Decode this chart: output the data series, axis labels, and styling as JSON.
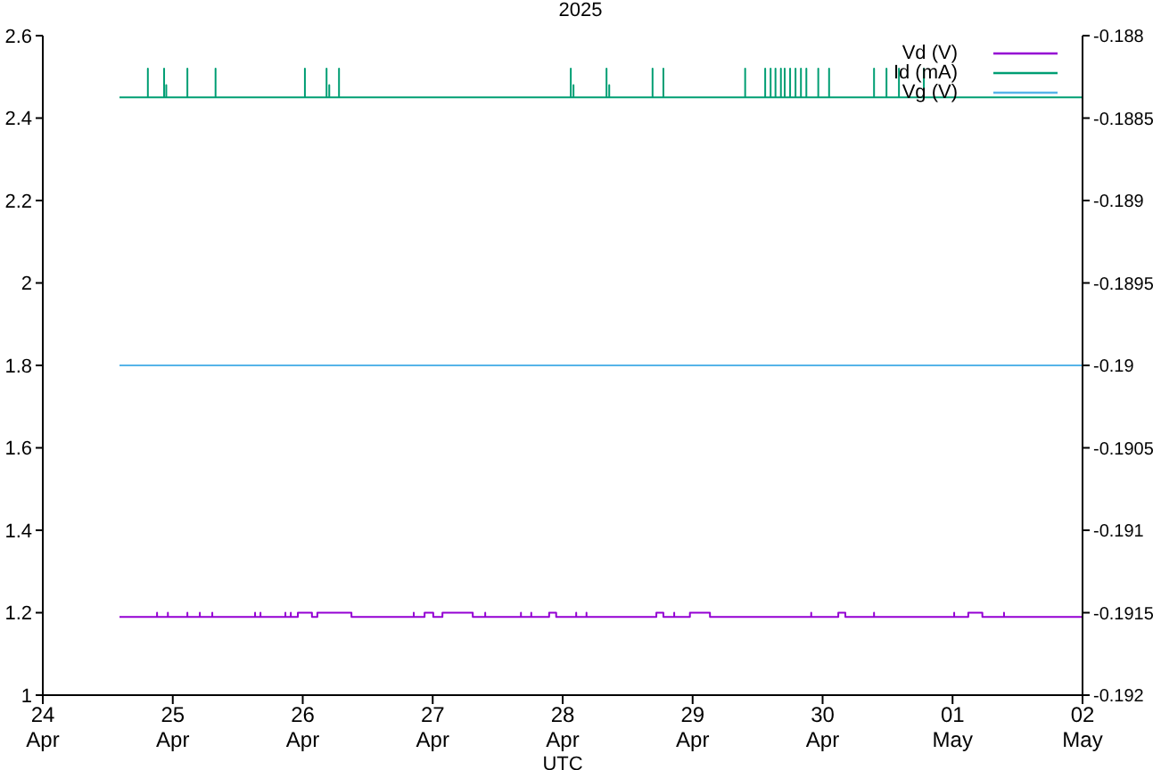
{
  "chart_data": {
    "type": "line",
    "title": "2025",
    "xlabel": "UTC",
    "xlim": [
      "2025-04-24",
      "2025-05-02"
    ],
    "xticks": [
      {
        "value": "2025-04-24",
        "label": "24 Apr"
      },
      {
        "value": "2025-04-25",
        "label": "25 Apr"
      },
      {
        "value": "2025-04-26",
        "label": "26 Apr"
      },
      {
        "value": "2025-04-27",
        "label": "27 Apr"
      },
      {
        "value": "2025-04-28",
        "label": "28 Apr"
      },
      {
        "value": "2025-04-29",
        "label": "29 Apr"
      },
      {
        "value": "2025-04-30",
        "label": "30 Apr"
      },
      {
        "value": "2025-05-01",
        "label": "01 May"
      },
      {
        "value": "2025-05-02",
        "label": "02 May"
      }
    ],
    "ylim": [
      1,
      2.6
    ],
    "yticks": [
      1,
      1.2,
      1.4,
      1.6,
      1.8,
      2,
      2.2,
      2.4,
      2.6
    ],
    "y2lim": [
      -0.192,
      -0.188
    ],
    "y2ticks": [
      -0.192,
      -0.1915,
      -0.191,
      -0.1905,
      -0.19,
      -0.1895,
      -0.189,
      -0.1885,
      -0.188
    ],
    "legend": "top right",
    "marker": "none",
    "line_style": "solid",
    "series": [
      {
        "name": "Vd (V)",
        "color": "#9400d3",
        "x": [
          "2025-04-24T14:10",
          "2025-04-24T21:06",
          "2025-04-24T21:06",
          "2025-04-24T21:06",
          "2025-04-24T23:06",
          "2025-04-24T23:06",
          "2025-04-24T23:06",
          "2025-04-25T02:42",
          "2025-04-25T02:42",
          "2025-04-25T02:42",
          "2025-04-25T05:00",
          "2025-04-25T05:00",
          "2025-04-25T05:00",
          "2025-04-25T07:18",
          "2025-04-25T07:18",
          "2025-04-25T07:18",
          "2025-04-25T15:12",
          "2025-04-25T15:12",
          "2025-04-25T15:12",
          "2025-04-25T16:12",
          "2025-04-25T16:12",
          "2025-04-25T16:12",
          "2025-04-25T20:48",
          "2025-04-25T20:48",
          "2025-04-25T20:48",
          "2025-04-25T21:48",
          "2025-04-25T21:48",
          "2025-04-25T21:48",
          "2025-04-25T23:06",
          "2025-04-25T23:06",
          "2025-04-26T01:42",
          "2025-04-26T01:42",
          "2025-04-26T02:42",
          "2025-04-26T02:42",
          "2025-04-26T09:00",
          "2025-04-26T09:00",
          "2025-04-26T20:30",
          "2025-04-26T20:30",
          "2025-04-26T20:30",
          "2025-04-26T22:30",
          "2025-04-26T22:30",
          "2025-04-27T00:06",
          "2025-04-27T00:06",
          "2025-04-27T01:48",
          "2025-04-27T01:48",
          "2025-04-27T07:24",
          "2025-04-27T07:24",
          "2025-04-27T09:42",
          "2025-04-27T09:42",
          "2025-04-27T09:42",
          "2025-04-27T16:18",
          "2025-04-27T16:18",
          "2025-04-27T16:18",
          "2025-04-27T18:12",
          "2025-04-27T18:12",
          "2025-04-27T18:12",
          "2025-04-27T21:30",
          "2025-04-27T21:30",
          "2025-04-27T22:48",
          "2025-04-27T22:48",
          "2025-04-28T02:30",
          "2025-04-28T02:30",
          "2025-04-28T02:30",
          "2025-04-28T04:24",
          "2025-04-28T04:24",
          "2025-04-28T04:24",
          "2025-04-28T17:18",
          "2025-04-28T17:18",
          "2025-04-28T18:36",
          "2025-04-28T18:36",
          "2025-04-28T20:36",
          "2025-04-28T20:36",
          "2025-04-28T20:36",
          "2025-04-28T23:30",
          "2025-04-28T23:30",
          "2025-04-29T03:12",
          "2025-04-29T03:12",
          "2025-04-29T21:54",
          "2025-04-29T21:54",
          "2025-04-29T21:54",
          "2025-04-30T02:54",
          "2025-04-30T02:54",
          "2025-04-30T04:12",
          "2025-04-30T04:12",
          "2025-04-30T09:30",
          "2025-04-30T09:30",
          "2025-04-30T09:30",
          "2025-05-01T00:18",
          "2025-05-01T00:18",
          "2025-05-01T00:18",
          "2025-05-01T02:54",
          "2025-05-01T02:54",
          "2025-05-01T05:30",
          "2025-05-01T05:30",
          "2025-05-01T09:30",
          "2025-05-01T09:30",
          "2025-05-01T09:30",
          "2025-05-02T00:00"
        ],
        "values": [
          1.19,
          1.19,
          1.2,
          1.19,
          1.19,
          1.2,
          1.19,
          1.19,
          1.2,
          1.19,
          1.19,
          1.2,
          1.19,
          1.19,
          1.2,
          1.19,
          1.19,
          1.2,
          1.19,
          1.19,
          1.2,
          1.19,
          1.19,
          1.2,
          1.19,
          1.19,
          1.2,
          1.19,
          1.19,
          1.2,
          1.2,
          1.19,
          1.19,
          1.2,
          1.2,
          1.19,
          1.19,
          1.2,
          1.19,
          1.19,
          1.2,
          1.2,
          1.19,
          1.19,
          1.2,
          1.2,
          1.19,
          1.19,
          1.2,
          1.19,
          1.19,
          1.2,
          1.19,
          1.19,
          1.2,
          1.19,
          1.19,
          1.2,
          1.2,
          1.19,
          1.19,
          1.2,
          1.19,
          1.19,
          1.2,
          1.19,
          1.19,
          1.2,
          1.2,
          1.19,
          1.19,
          1.2,
          1.19,
          1.19,
          1.2,
          1.2,
          1.19,
          1.19,
          1.2,
          1.19,
          1.19,
          1.2,
          1.2,
          1.19,
          1.19,
          1.2,
          1.19,
          1.19,
          1.2,
          1.19,
          1.19,
          1.2,
          1.2,
          1.19,
          1.19,
          1.2,
          1.19,
          1.19
        ]
      },
      {
        "name": "Id (mA)",
        "color": "#009e73",
        "x": [
          "2025-04-24T14:10",
          "2025-04-24T19:24",
          "2025-04-24T19:24",
          "2025-04-24T19:24",
          "2025-04-24T22:24",
          "2025-04-24T22:24",
          "2025-04-24T22:24",
          "2025-04-24T22:48",
          "2025-04-24T22:48",
          "2025-04-24T22:48",
          "2025-04-25T02:42",
          "2025-04-25T02:42",
          "2025-04-25T02:42",
          "2025-04-25T07:54",
          "2025-04-25T07:54",
          "2025-04-25T07:54",
          "2025-04-26T00:24",
          "2025-04-26T00:24",
          "2025-04-26T00:24",
          "2025-04-26T04:24",
          "2025-04-26T04:24",
          "2025-04-26T04:24",
          "2025-04-26T04:54",
          "2025-04-26T04:54",
          "2025-04-26T04:54",
          "2025-04-26T06:42",
          "2025-04-26T06:42",
          "2025-04-26T06:42",
          "2025-04-28T01:30",
          "2025-04-28T01:30",
          "2025-04-28T01:30",
          "2025-04-28T02:00",
          "2025-04-28T02:00",
          "2025-04-28T02:00",
          "2025-04-28T08:06",
          "2025-04-28T08:06",
          "2025-04-28T08:06",
          "2025-04-28T08:36",
          "2025-04-28T08:36",
          "2025-04-28T08:36",
          "2025-04-28T16:36",
          "2025-04-28T16:36",
          "2025-04-28T16:36",
          "2025-04-28T18:36",
          "2025-04-28T18:36",
          "2025-04-28T18:36",
          "2025-04-29T09:42",
          "2025-04-29T09:42",
          "2025-04-29T09:42",
          "2025-04-29T13:24",
          "2025-04-29T13:24",
          "2025-04-29T13:24",
          "2025-04-29T14:24",
          "2025-04-29T14:24",
          "2025-04-29T14:24",
          "2025-04-29T15:18",
          "2025-04-29T15:18",
          "2025-04-29T15:18",
          "2025-04-29T16:18",
          "2025-04-29T16:18",
          "2025-04-29T16:18",
          "2025-04-29T17:00",
          "2025-04-29T17:00",
          "2025-04-29T17:00",
          "2025-04-29T18:00",
          "2025-04-29T18:00",
          "2025-04-29T18:00",
          "2025-04-29T19:00",
          "2025-04-29T19:00",
          "2025-04-29T19:00",
          "2025-04-29T20:00",
          "2025-04-29T20:00",
          "2025-04-29T20:00",
          "2025-04-29T21:00",
          "2025-04-29T21:00",
          "2025-04-29T21:00",
          "2025-04-29T23:12",
          "2025-04-29T23:12",
          "2025-04-29T23:12",
          "2025-04-30T01:12",
          "2025-04-30T01:12",
          "2025-04-30T01:12",
          "2025-04-30T09:30",
          "2025-04-30T09:30",
          "2025-04-30T09:30",
          "2025-04-30T11:48",
          "2025-04-30T11:48",
          "2025-04-30T11:48",
          "2025-04-30T14:06",
          "2025-04-30T14:06",
          "2025-04-30T14:06",
          "2025-04-30T18:42",
          "2025-04-30T18:42",
          "2025-04-30T18:42",
          "2025-05-02T00:00"
        ],
        "values": [
          2.45,
          2.45,
          2.52,
          2.45,
          2.45,
          2.52,
          2.45,
          2.45,
          2.48,
          2.45,
          2.45,
          2.52,
          2.45,
          2.45,
          2.52,
          2.45,
          2.45,
          2.52,
          2.45,
          2.45,
          2.52,
          2.45,
          2.45,
          2.48,
          2.45,
          2.45,
          2.52,
          2.45,
          2.45,
          2.52,
          2.45,
          2.45,
          2.48,
          2.45,
          2.45,
          2.52,
          2.45,
          2.45,
          2.48,
          2.45,
          2.45,
          2.52,
          2.45,
          2.45,
          2.52,
          2.45,
          2.45,
          2.52,
          2.45,
          2.45,
          2.52,
          2.45,
          2.45,
          2.52,
          2.45,
          2.45,
          2.52,
          2.45,
          2.45,
          2.52,
          2.45,
          2.45,
          2.52,
          2.45,
          2.45,
          2.52,
          2.45,
          2.45,
          2.52,
          2.45,
          2.45,
          2.52,
          2.45,
          2.45,
          2.52,
          2.45,
          2.45,
          2.52,
          2.45,
          2.45,
          2.52,
          2.45,
          2.45,
          2.52,
          2.45,
          2.45,
          2.52,
          2.45,
          2.45,
          2.52,
          2.45,
          2.45,
          2.52,
          2.45,
          2.45
        ]
      },
      {
        "name": "Vg (V)",
        "color": "#56b4e9",
        "axis": "y2",
        "x": [
          "2025-04-24T14:10",
          "2025-05-02T00:00"
        ],
        "values": [
          -0.19,
          -0.19
        ]
      }
    ]
  }
}
